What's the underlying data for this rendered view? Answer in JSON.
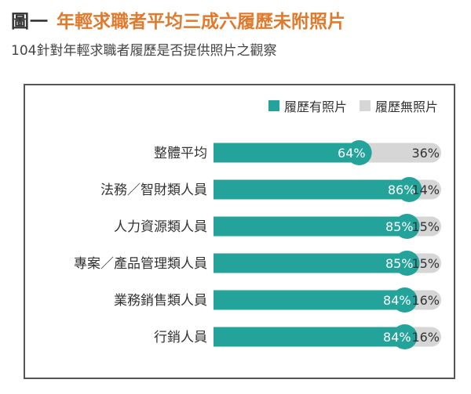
{
  "header": {
    "figure_label": "圖一",
    "title": "年輕求職者平均三成六履歷未附照片",
    "subtitle": "104針對年輕求職者履歷是否提供照片之觀察"
  },
  "colors": {
    "with_photo": "#23a39a",
    "without_photo": "#d6d6d6",
    "title_accent": "#e07a2d"
  },
  "chart_data": {
    "type": "bar",
    "stacked": true,
    "orientation": "horizontal",
    "categories": [
      "整體平均",
      "法務／智財類人員",
      "人力資源類人員",
      "專案／產品管理類人員",
      "業務銷售類人員",
      "行銷人員"
    ],
    "series": [
      {
        "name": "履歷有照片",
        "values": [
          64,
          86,
          85,
          85,
          84,
          84
        ],
        "labels": [
          "64%",
          "86%",
          "85%",
          "85%",
          "84%",
          "84%"
        ]
      },
      {
        "name": "履歷無照片",
        "values": [
          36,
          14,
          15,
          15,
          16,
          16
        ],
        "labels": [
          "36%",
          "14%",
          "15%",
          "15%",
          "16%",
          "16%"
        ]
      }
    ],
    "xlim": [
      0,
      100
    ],
    "legend_position": "top-right",
    "grid": false
  }
}
